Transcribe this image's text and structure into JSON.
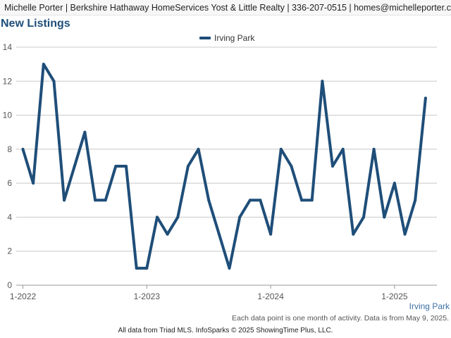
{
  "header": {
    "text": "Michelle Porter | Berkshire Hathaway HomeServices Yost & Little Realty | 336-207-0515 | homes@michelleporter.com"
  },
  "chart_data": {
    "type": "line",
    "title": "New Listings",
    "legend_position": "top-center",
    "grid": true,
    "ylim": [
      0,
      14
    ],
    "yticks": [
      0,
      2,
      4,
      6,
      8,
      10,
      12,
      14
    ],
    "xtick_labels": [
      "1-2022",
      "1-2023",
      "1-2024",
      "1-2025"
    ],
    "xlim": [
      "2022-01",
      "2025-04"
    ],
    "series": [
      {
        "name": "Irving Park",
        "color": "#1f4e79",
        "x": [
          "2022-01",
          "2022-02",
          "2022-03",
          "2022-04",
          "2022-05",
          "2022-06",
          "2022-07",
          "2022-08",
          "2022-09",
          "2022-10",
          "2022-11",
          "2022-12",
          "2023-01",
          "2023-02",
          "2023-03",
          "2023-04",
          "2023-05",
          "2023-06",
          "2023-07",
          "2023-08",
          "2023-09",
          "2023-10",
          "2023-11",
          "2023-12",
          "2024-01",
          "2024-02",
          "2024-03",
          "2024-04",
          "2024-05",
          "2024-06",
          "2024-07",
          "2024-08",
          "2024-09",
          "2024-10",
          "2024-11",
          "2024-12",
          "2025-01",
          "2025-02",
          "2025-03",
          "2025-04"
        ],
        "values": [
          8,
          6,
          13,
          12,
          5,
          7,
          9,
          5,
          5,
          7,
          7,
          1,
          1,
          4,
          3,
          4,
          7,
          8,
          5,
          3,
          1,
          4,
          5,
          5,
          3,
          8,
          7,
          5,
          5,
          12,
          7,
          8,
          3,
          4,
          8,
          4,
          6,
          3,
          5,
          11
        ]
      }
    ]
  },
  "series_label": "Irving Park",
  "note": "Each data point is one month of activity. Data is from May 9, 2025.",
  "footer": "All data from Triad MLS. InfoSparks © 2025 ShowingTime Plus, LLC."
}
